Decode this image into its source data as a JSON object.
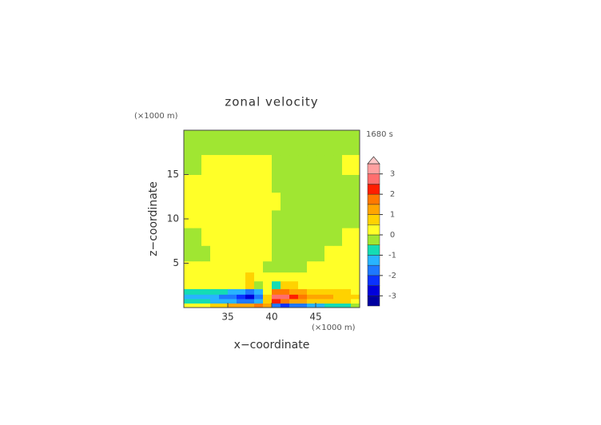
{
  "chart_data": {
    "type": "contour",
    "title": "zonal velocity",
    "x_label": "x−coordinate",
    "y_label": "z−coordinate",
    "x_unit": "(×1000 m)",
    "y_unit": "(×1000 m)",
    "time_label": "1680 s",
    "xlim": [
      30,
      50
    ],
    "ylim": [
      0,
      20
    ],
    "xticks": [
      35,
      40,
      45
    ],
    "yticks": [
      5,
      10,
      15
    ],
    "x": [
      30.5,
      31.5,
      32.5,
      33.5,
      34.5,
      35.5,
      36.5,
      37.5,
      38.5,
      39.5,
      40.5,
      41.5,
      42.5,
      43.5,
      44.5,
      45.5,
      46.5,
      47.5,
      48.5,
      49.5
    ],
    "y": [
      0.25,
      0.75,
      1.25,
      1.75,
      2.5,
      3.5,
      4.5,
      6,
      8,
      10,
      12,
      14,
      16,
      18.5
    ],
    "z": [
      [
        0.2,
        0.3,
        0.4,
        0.6,
        0.8,
        1.0,
        1.2,
        1.4,
        1.6,
        1.2,
        -1.8,
        -2.2,
        -2.0,
        -1.8,
        -1.5,
        -1.2,
        -1.0,
        -0.8,
        -0.6,
        -0.3
      ],
      [
        -0.8,
        -0.9,
        -1.0,
        -1.1,
        -1.2,
        -1.4,
        -1.6,
        -1.8,
        -1.4,
        0.6,
        2.2,
        1.8,
        1.4,
        1.1,
        0.9,
        0.8,
        0.7,
        0.6,
        0.5,
        0.4
      ],
      [
        -1.2,
        -1.3,
        -1.4,
        -1.5,
        -1.6,
        -1.8,
        -2.2,
        -2.8,
        -2.0,
        0.8,
        2.8,
        2.6,
        2.0,
        1.6,
        1.3,
        1.1,
        1.0,
        0.9,
        0.8,
        0.6
      ],
      [
        -0.6,
        -0.7,
        -0.8,
        -0.9,
        -1.0,
        -1.2,
        -1.5,
        -2.0,
        -1.4,
        0.4,
        1.6,
        1.8,
        1.4,
        1.0,
        0.8,
        0.7,
        0.6,
        0.6,
        0.5,
        0.4
      ],
      [
        0.2,
        0.2,
        0.2,
        0.2,
        0.3,
        0.3,
        0.4,
        0.6,
        -0.3,
        0.2,
        -0.6,
        0.8,
        0.5,
        0.4,
        0.3,
        0.3,
        0.3,
        0.2,
        0.2,
        0.2
      ],
      [
        0.1,
        0.1,
        0.1,
        0.1,
        0.1,
        0.2,
        0.3,
        0.5,
        0.2,
        0.1,
        0.1,
        0.2,
        0.1,
        0.1,
        0.1,
        0.1,
        0.1,
        0.1,
        0.1,
        0.1
      ],
      [
        0.1,
        0.1,
        0.1,
        0.1,
        0.1,
        0.1,
        0.1,
        0.1,
        0.1,
        -0.1,
        -0.1,
        -0.1,
        -0.1,
        -0.1,
        0.1,
        0.1,
        0.1,
        0.1,
        0.1,
        0.1
      ],
      [
        -0.1,
        -0.1,
        -0.1,
        0.1,
        0.1,
        0.1,
        0.1,
        0.1,
        0.1,
        0.1,
        -0.1,
        -0.1,
        -0.1,
        -0.1,
        -0.1,
        -0.1,
        0.1,
        0.1,
        0.1,
        0.1
      ],
      [
        -0.1,
        -0.1,
        0.1,
        0.1,
        0.1,
        0.1,
        0.1,
        0.1,
        0.1,
        0.1,
        -0.1,
        -0.1,
        -0.1,
        -0.1,
        -0.1,
        -0.1,
        -0.1,
        -0.1,
        0.1,
        0.1
      ],
      [
        0.1,
        0.1,
        0.1,
        0.1,
        0.1,
        0.1,
        0.1,
        0.1,
        0.1,
        0.1,
        -0.1,
        -0.1,
        -0.1,
        -0.1,
        -0.1,
        -0.1,
        -0.1,
        -0.1,
        -0.1,
        -0.1
      ],
      [
        0.1,
        0.1,
        0.1,
        0.1,
        0.1,
        0.1,
        0.1,
        0.1,
        0.1,
        0.1,
        0.1,
        -0.1,
        -0.1,
        -0.1,
        -0.1,
        -0.1,
        -0.1,
        -0.1,
        -0.1,
        -0.1
      ],
      [
        0.1,
        0.1,
        0.1,
        0.1,
        0.1,
        0.1,
        0.1,
        0.1,
        0.1,
        0.1,
        -0.1,
        -0.1,
        -0.1,
        -0.1,
        -0.1,
        -0.1,
        -0.1,
        -0.1,
        -0.1,
        -0.1
      ],
      [
        -0.1,
        -0.1,
        0.1,
        0.1,
        0.1,
        0.1,
        0.1,
        0.1,
        0.1,
        0.1,
        -0.1,
        -0.1,
        -0.1,
        -0.1,
        -0.1,
        -0.1,
        -0.1,
        -0.1,
        0.1,
        0.1
      ],
      [
        -0.1,
        -0.1,
        -0.1,
        -0.1,
        -0.1,
        -0.1,
        -0.1,
        -0.1,
        -0.1,
        -0.1,
        -0.1,
        -0.1,
        -0.1,
        -0.1,
        -0.1,
        -0.1,
        -0.1,
        -0.1,
        -0.1,
        -0.1
      ]
    ],
    "levels": [
      -3.5,
      -3,
      -2.5,
      -2,
      -1.5,
      -1,
      -0.5,
      0,
      0.5,
      1,
      1.5,
      2,
      2.5,
      3,
      3.5
    ],
    "colors": [
      "#0000a0",
      "#0000dc",
      "#0a32ff",
      "#1e78ff",
      "#28b4ff",
      "#14dcb4",
      "#a0e632",
      "#ffff28",
      "#ffd200",
      "#ffa500",
      "#ff7800",
      "#ff1e00",
      "#ff6e6e",
      "#ffa0a0"
    ],
    "over_color": "#ffc8c8",
    "cbar_ticks": [
      -3,
      -2,
      -1,
      0,
      1,
      2,
      3
    ]
  }
}
